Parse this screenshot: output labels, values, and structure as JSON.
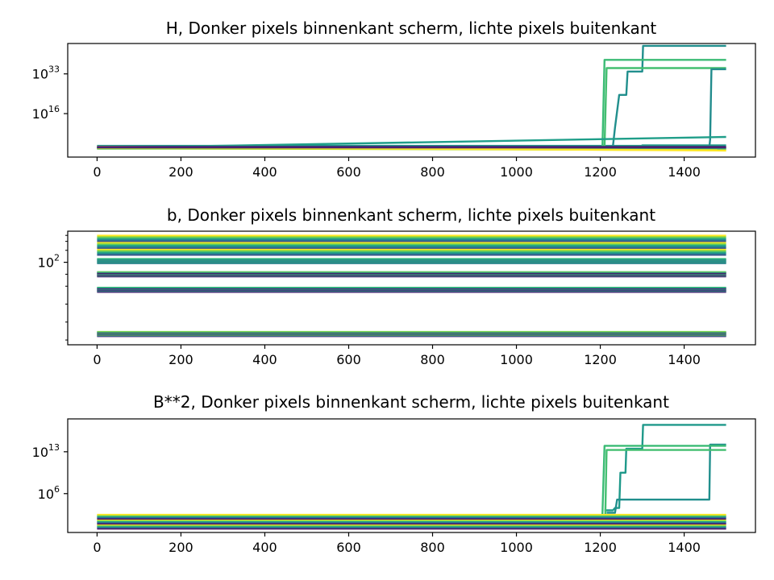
{
  "chart_data": [
    {
      "type": "line",
      "title": "H,  Donker pixels binnenkant scherm, lichte pixels buitenkant",
      "xlabel": "",
      "ylabel": "",
      "xlim": [
        -70,
        1570
      ],
      "xticks": [
        0,
        200,
        400,
        600,
        800,
        1000,
        1200,
        1400
      ],
      "yscale": "log",
      "ylim_log10": [
        -2.6,
        46
      ],
      "yticks": [
        {
          "label": "10",
          "exp": "33",
          "log10": 33
        },
        {
          "label": "10",
          "exp": "16",
          "log10": 16
        }
      ],
      "grid": false,
      "legend": "none",
      "series_log10": [
        {
          "color": "#1f998a",
          "points": [
            [
              0,
              2.2
            ],
            [
              1300,
              2.2
            ],
            [
              1300,
              2.4
            ],
            [
              1500,
              2.4
            ]
          ]
        },
        {
          "color": "#218f8d",
          "points": [
            [
              0,
              2.0
            ],
            [
              1230,
              2.0
            ],
            [
              1235,
              10
            ],
            [
              1245,
              24
            ],
            [
              1262,
              24
            ],
            [
              1265,
              34
            ],
            [
              1300,
              34
            ],
            [
              1302,
              45
            ],
            [
              1500,
              45
            ]
          ]
        },
        {
          "color": "#3bbb75",
          "points": [
            [
              0,
              1.6
            ],
            [
              1205,
              1.6
            ],
            [
              1210,
              39
            ],
            [
              1500,
              39
            ]
          ]
        },
        {
          "color": "#44bf70",
          "points": [
            [
              0,
              1.4
            ],
            [
              1210,
              1.4
            ],
            [
              1215,
              35.5
            ],
            [
              1500,
              35.5
            ]
          ]
        },
        {
          "color": "#22a785",
          "points": [
            [
              0,
              1.1
            ],
            [
              1225,
              1.1
            ],
            [
              1500,
              1.1
            ]
          ]
        },
        {
          "color": "#228c8d",
          "points": [
            [
              0,
              1.5
            ],
            [
              1460,
              1.5
            ],
            [
              1462,
              5
            ],
            [
              1465,
              35
            ],
            [
              1500,
              35
            ]
          ]
        },
        {
          "color": "#1f9e89",
          "points": [
            [
              0,
              1.3
            ],
            [
              1500,
              6.0
            ]
          ]
        },
        {
          "color": "#35b779",
          "points": [
            [
              0,
              1.0
            ],
            [
              1500,
              1.0
            ]
          ]
        },
        {
          "color": "#b5de2b",
          "points": [
            [
              0,
              1.2
            ],
            [
              1500,
              0.4
            ]
          ]
        },
        {
          "color": "#fde725",
          "points": [
            [
              0,
              1.8
            ],
            [
              1500,
              0.2
            ]
          ]
        },
        {
          "color": "#481a6c",
          "points": [
            [
              0,
              1.7
            ],
            [
              1500,
              1.7
            ]
          ]
        },
        {
          "color": "#482173",
          "points": [
            [
              0,
              1.5
            ],
            [
              1500,
              1.5
            ]
          ]
        }
      ]
    },
    {
      "type": "line",
      "title": "b,  Donker pixels binnenkant scherm, lichte pixels buitenkant",
      "xlabel": "",
      "ylabel": "",
      "xlim": [
        -70,
        1570
      ],
      "xticks": [
        0,
        200,
        400,
        600,
        800,
        1000,
        1200,
        1400
      ],
      "yscale": "log",
      "ylim_log10": [
        0.62,
        2.52
      ],
      "yticks": [
        {
          "label": "10",
          "exp": "2",
          "log10": 2
        }
      ],
      "grid": false,
      "legend": "none",
      "bands": [
        {
          "from": 2.12,
          "to": 2.45,
          "colors": [
            "#3b528b",
            "#2c728e",
            "#21918c",
            "#28ae80",
            "#5ec962",
            "#addc30",
            "#fde725"
          ]
        },
        {
          "from": 1.98,
          "to": 2.06,
          "colors": [
            "#31688e",
            "#26828e",
            "#1f9e89",
            "#35b779"
          ]
        },
        {
          "from": 1.76,
          "to": 1.84,
          "colors": [
            "#440154",
            "#472d7b",
            "#3b528b",
            "#21918c",
            "#5ec962"
          ]
        },
        {
          "from": 1.5,
          "to": 1.58,
          "colors": [
            "#440154",
            "#482878",
            "#3e4989",
            "#26828e",
            "#35b779"
          ]
        },
        {
          "from": 0.76,
          "to": 0.84,
          "colors": [
            "#440154",
            "#414487",
            "#2a788e",
            "#22a884",
            "#7ad151"
          ]
        }
      ]
    },
    {
      "type": "line",
      "title": "B**2,  Donker pixels binnenkant scherm, lichte pixels buitenkant",
      "xlabel": "",
      "ylabel": "",
      "xlim": [
        -70,
        1570
      ],
      "xticks": [
        0,
        200,
        400,
        600,
        800,
        1000,
        1200,
        1400
      ],
      "yscale": "log",
      "ylim_log10": [
        -0.5,
        18.5
      ],
      "yticks": [
        {
          "label": "10",
          "exp": "13",
          "log10": 13
        },
        {
          "label": "10",
          "exp": "6",
          "log10": 6
        }
      ],
      "grid": false,
      "legend": "none",
      "band": {
        "from": 0.1,
        "to": 2.5,
        "colors": [
          "#440154",
          "#46327e",
          "#365c8d",
          "#277f8e",
          "#1fa187",
          "#4ac16d",
          "#a0da39",
          "#fde725"
        ]
      },
      "series_log10": [
        {
          "color": "#1f998a",
          "points": [
            [
              1210,
              3.2
            ],
            [
              1230,
              3.2
            ],
            [
              1235,
              3.6
            ],
            [
              1245,
              3.6
            ],
            [
              1248,
              9.5
            ],
            [
              1260,
              9.5
            ],
            [
              1262,
              13.5
            ],
            [
              1300,
              13.5
            ],
            [
              1302,
              17.5
            ],
            [
              1500,
              17.5
            ]
          ]
        },
        {
          "color": "#218f8d",
          "points": [
            [
              1215,
              2.8
            ],
            [
              1235,
              2.8
            ],
            [
              1240,
              5.0
            ],
            [
              1460,
              5.0
            ],
            [
              1462,
              14.2
            ],
            [
              1500,
              14.2
            ]
          ]
        },
        {
          "color": "#3bbb75",
          "points": [
            [
              1205,
              2.6
            ],
            [
              1210,
              14.0
            ],
            [
              1500,
              14.0
            ]
          ]
        },
        {
          "color": "#44bf70",
          "points": [
            [
              1212,
              2.6
            ],
            [
              1215,
              13.3
            ],
            [
              1500,
              13.3
            ]
          ]
        }
      ]
    }
  ]
}
